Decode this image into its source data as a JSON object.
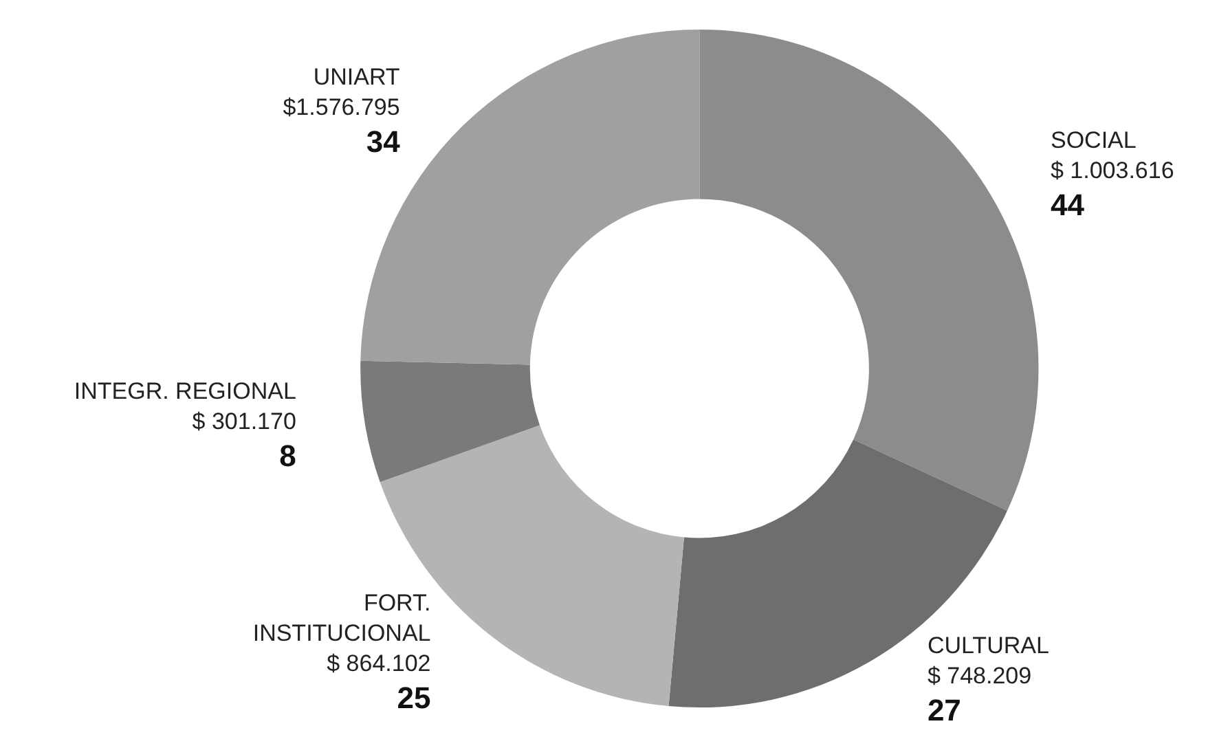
{
  "chart_data": {
    "type": "donut",
    "categories": [
      "SOCIAL\n$ 1.003.616",
      "CULTURAL\n$ 748.209",
      "FORT.\nINSTITUCIONAL\n$ 864.102",
      "INTEGR. REGIONAL\n$ 301.170",
      "UNIART\n$1.576.795"
    ],
    "values": [
      44,
      27,
      25,
      8,
      34
    ],
    "colors": [
      "#8c8c8c",
      "#6e6e6e",
      "#b4b4b4",
      "#7a7a7a",
      "#a0a0a0"
    ],
    "data_labels": true,
    "legend": false
  }
}
